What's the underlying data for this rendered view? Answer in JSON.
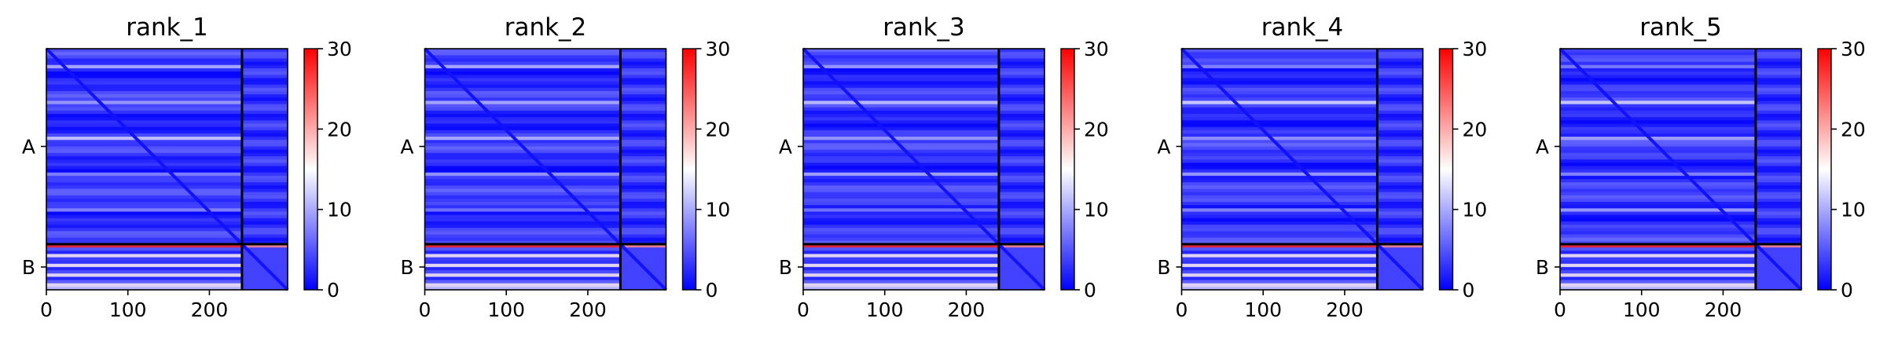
{
  "chart_data": [
    {
      "type": "heatmap",
      "title": "rank_1",
      "x_ticks": [
        "0",
        "100",
        "200"
      ],
      "y_ticks": [
        "A",
        "B"
      ],
      "colorbar_ticks": [
        "0",
        "10",
        "20",
        "30"
      ],
      "colorbar_range": [
        0,
        30
      ],
      "colormap": [
        "#0000ff",
        "#ffffff",
        "#ff0000"
      ],
      "xlim": [
        0,
        296
      ],
      "chain_lengths": [
        240,
        56
      ],
      "diagonal_value": 1,
      "background_value": 3
    },
    {
      "type": "heatmap",
      "title": "rank_2",
      "x_ticks": [
        "0",
        "100",
        "200"
      ],
      "y_ticks": [
        "A",
        "B"
      ],
      "colorbar_ticks": [
        "0",
        "10",
        "20",
        "30"
      ],
      "colorbar_range": [
        0,
        30
      ],
      "colormap": [
        "#0000ff",
        "#ffffff",
        "#ff0000"
      ],
      "xlim": [
        0,
        296
      ],
      "chain_lengths": [
        240,
        56
      ],
      "diagonal_value": 1,
      "background_value": 3
    },
    {
      "type": "heatmap",
      "title": "rank_3",
      "x_ticks": [
        "0",
        "100",
        "200"
      ],
      "y_ticks": [
        "A",
        "B"
      ],
      "colorbar_ticks": [
        "0",
        "10",
        "20",
        "30"
      ],
      "colorbar_range": [
        0,
        30
      ],
      "colormap": [
        "#0000ff",
        "#ffffff",
        "#ff0000"
      ],
      "xlim": [
        0,
        296
      ],
      "chain_lengths": [
        240,
        56
      ],
      "diagonal_value": 1,
      "background_value": 3
    },
    {
      "type": "heatmap",
      "title": "rank_4",
      "x_ticks": [
        "0",
        "100",
        "200"
      ],
      "y_ticks": [
        "A",
        "B"
      ],
      "colorbar_ticks": [
        "0",
        "10",
        "20",
        "30"
      ],
      "colorbar_range": [
        0,
        30
      ],
      "colormap": [
        "#0000ff",
        "#ffffff",
        "#ff0000"
      ],
      "xlim": [
        0,
        296
      ],
      "chain_lengths": [
        240,
        56
      ],
      "diagonal_value": 1,
      "background_value": 3
    },
    {
      "type": "heatmap",
      "title": "rank_5",
      "x_ticks": [
        "0",
        "100",
        "200"
      ],
      "y_ticks": [
        "A",
        "B"
      ],
      "colorbar_ticks": [
        "0",
        "10",
        "20",
        "30"
      ],
      "colorbar_range": [
        0,
        30
      ],
      "colormap": [
        "#0000ff",
        "#ffffff",
        "#ff0000"
      ],
      "xlim": [
        0,
        296
      ],
      "chain_lengths": [
        240,
        56
      ],
      "diagonal_value": 1,
      "background_value": 3
    }
  ]
}
